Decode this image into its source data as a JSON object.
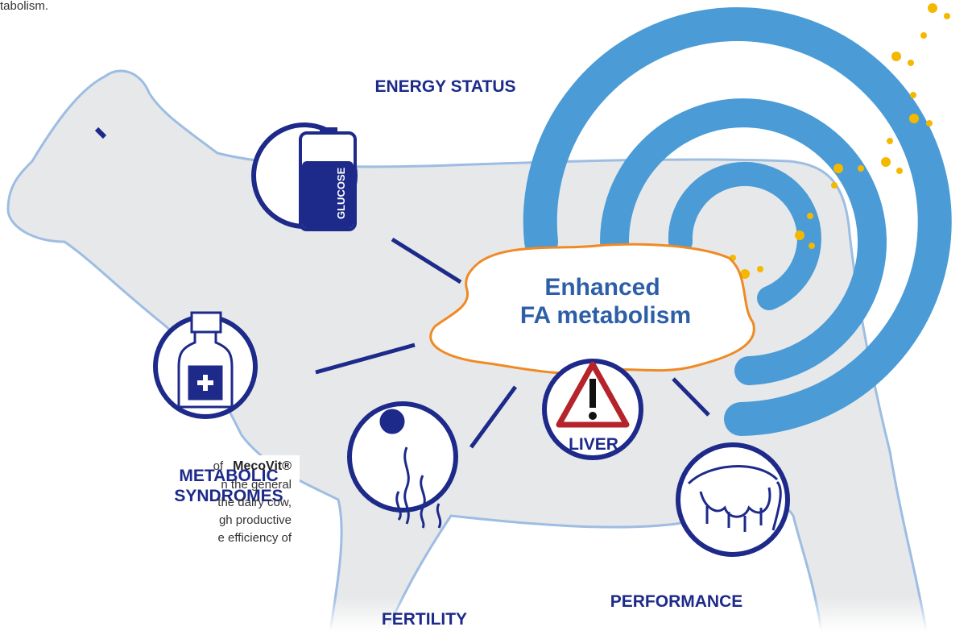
{
  "header_fragment": "tabolism.",
  "center": {
    "title_lines": [
      "Enhanced",
      "FA metabolism"
    ]
  },
  "nodes": [
    {
      "label_lines": [
        "ENERGY STATUS"
      ],
      "icon_text": "GLUCOSE"
    },
    {
      "label_lines": [
        "METABOLIC",
        "SYNDROMES"
      ]
    },
    {
      "label_lines": [
        "FERTILITY"
      ]
    },
    {
      "label_lines": [
        "LIVER"
      ]
    },
    {
      "label_lines": [
        "PERFORMANCE"
      ]
    }
  ],
  "side_text": {
    "first_prefix": "of",
    "brand": "MecoVit®",
    "lines": [
      "n the general",
      "the dairy cow,",
      "gh productive",
      "e efficiency of"
    ]
  }
}
